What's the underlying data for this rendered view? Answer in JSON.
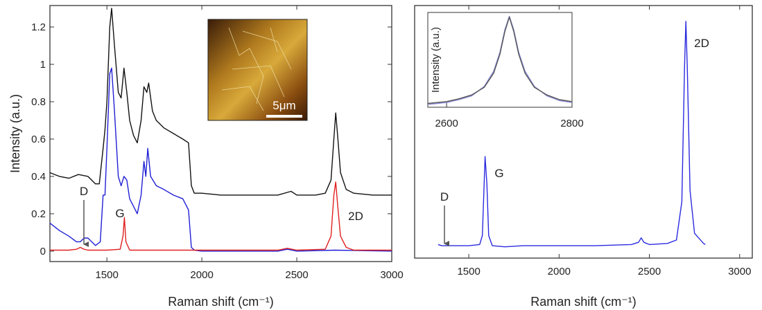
{
  "chart_data": [
    {
      "type": "line",
      "xlabel": "Raman shift (cm⁻¹)",
      "ylabel": "Intensity (a.u.)",
      "xlim": [
        1200,
        3000
      ],
      "ylim": [
        -0.056,
        1.315
      ],
      "xticks": [
        1500,
        2000,
        2500,
        3000
      ],
      "yticks": [
        0,
        0.2,
        0.4,
        0.6,
        0.8,
        1,
        1.2
      ],
      "annotations": [
        "D",
        "G",
        "2D"
      ],
      "image_label": "5μm",
      "series": [
        {
          "color": "#111111",
          "x": [
            1200,
            1250,
            1300,
            1350,
            1400,
            1440,
            1460,
            1480,
            1490,
            1500,
            1515,
            1525,
            1540,
            1560,
            1575,
            1590,
            1605,
            1620,
            1640,
            1660,
            1680,
            1695,
            1710,
            1720,
            1740,
            1760,
            1800,
            1850,
            1900,
            1930,
            1945,
            1960,
            2000,
            2100,
            2200,
            2300,
            2400,
            2470,
            2500,
            2600,
            2650,
            2680,
            2695,
            2705,
            2715,
            2730,
            2760,
            2800,
            2900,
            3000
          ],
          "values": [
            0.42,
            0.4,
            0.39,
            0.41,
            0.4,
            0.36,
            0.36,
            0.55,
            0.65,
            0.8,
            1.2,
            1.3,
            1.1,
            0.85,
            0.82,
            0.98,
            0.85,
            0.7,
            0.62,
            0.58,
            0.7,
            0.88,
            0.85,
            0.9,
            0.75,
            0.7,
            0.66,
            0.63,
            0.6,
            0.58,
            0.35,
            0.31,
            0.31,
            0.3,
            0.3,
            0.3,
            0.3,
            0.32,
            0.3,
            0.3,
            0.31,
            0.38,
            0.6,
            0.74,
            0.62,
            0.42,
            0.33,
            0.31,
            0.3,
            0.3
          ]
        },
        {
          "color": "#1f1fd6",
          "x": [
            1200,
            1250,
            1300,
            1340,
            1360,
            1380,
            1400,
            1440,
            1465,
            1480,
            1490,
            1500,
            1515,
            1525,
            1540,
            1560,
            1575,
            1590,
            1605,
            1620,
            1640,
            1660,
            1680,
            1695,
            1705,
            1715,
            1730,
            1760,
            1800,
            1850,
            1900,
            1930,
            1945,
            1960,
            2000,
            2200,
            2400,
            2450,
            2500,
            2700,
            3000
          ],
          "values": [
            0.15,
            0.11,
            0.08,
            0.05,
            0.05,
            0.07,
            0.07,
            0.03,
            0.05,
            0.3,
            0.3,
            0.55,
            0.95,
            0.98,
            0.75,
            0.4,
            0.35,
            0.4,
            0.38,
            0.28,
            0.24,
            0.2,
            0.3,
            0.48,
            0.4,
            0.55,
            0.4,
            0.35,
            0.33,
            0.3,
            0.28,
            0.22,
            0.02,
            0.005,
            0,
            0,
            0,
            0.01,
            0,
            0.005,
            0
          ]
        },
        {
          "color": "#e02020",
          "x": [
            1200,
            1300,
            1340,
            1360,
            1380,
            1400,
            1500,
            1570,
            1585,
            1592,
            1600,
            1620,
            1900,
            2400,
            2450,
            2500,
            2650,
            2680,
            2695,
            2705,
            2715,
            2730,
            2760,
            2800,
            3000
          ],
          "values": [
            0.005,
            0.005,
            0.01,
            0.02,
            0.01,
            0.005,
            0.005,
            0.01,
            0.08,
            0.18,
            0.05,
            0.005,
            0.005,
            0.005,
            0.015,
            0.005,
            0.01,
            0.08,
            0.3,
            0.37,
            0.25,
            0.08,
            0.02,
            0.005,
            0.005
          ]
        }
      ]
    },
    {
      "type": "line",
      "xlabel": "Raman shift (cm⁻¹)",
      "xlim": [
        1200,
        3070
      ],
      "ylim": [
        -0.05,
        1.07
      ],
      "xticks": [
        1500,
        2000,
        2500,
        3000
      ],
      "annotations": [
        "D",
        "G",
        "2D"
      ],
      "series": [
        {
          "color": "#2a2ae0",
          "x": [
            1330,
            1350,
            1400,
            1500,
            1560,
            1575,
            1590,
            1600,
            1610,
            1630,
            1700,
            1800,
            2000,
            2200,
            2400,
            2440,
            2455,
            2470,
            2500,
            2600,
            2650,
            2680,
            2695,
            2702,
            2710,
            2725,
            2750,
            2800,
            2810
          ],
          "values": [
            0.01,
            0.005,
            0.005,
            0.005,
            0.01,
            0.05,
            0.4,
            0.28,
            0.05,
            0.005,
            0,
            0.005,
            0.005,
            0.005,
            0.01,
            0.02,
            0.04,
            0.02,
            0.01,
            0.015,
            0.03,
            0.2,
            0.8,
            1.0,
            0.8,
            0.25,
            0.06,
            0.015,
            0.01
          ]
        }
      ]
    },
    {
      "type": "line",
      "ylabel": "Intensity (a.u.)",
      "xlim": [
        2570,
        2800
      ],
      "ylim": [
        0,
        1
      ],
      "xticks": [
        2600,
        2800
      ],
      "series": [
        {
          "color": "#8a8ad8",
          "x": [
            2570,
            2600,
            2620,
            2640,
            2660,
            2675,
            2685,
            2693,
            2700,
            2707,
            2715,
            2725,
            2740,
            2760,
            2780,
            2800
          ],
          "values": [
            0.03,
            0.05,
            0.08,
            0.12,
            0.22,
            0.38,
            0.58,
            0.82,
            0.96,
            0.82,
            0.58,
            0.38,
            0.22,
            0.12,
            0.07,
            0.05
          ]
        },
        {
          "color": "#555555",
          "x": [
            2570,
            2600,
            2620,
            2640,
            2660,
            2675,
            2685,
            2693,
            2700,
            2707,
            2715,
            2725,
            2740,
            2760,
            2780,
            2800
          ],
          "values": [
            0.04,
            0.06,
            0.09,
            0.13,
            0.21,
            0.36,
            0.56,
            0.8,
            0.95,
            0.8,
            0.56,
            0.36,
            0.21,
            0.13,
            0.08,
            0.06
          ]
        }
      ]
    }
  ]
}
